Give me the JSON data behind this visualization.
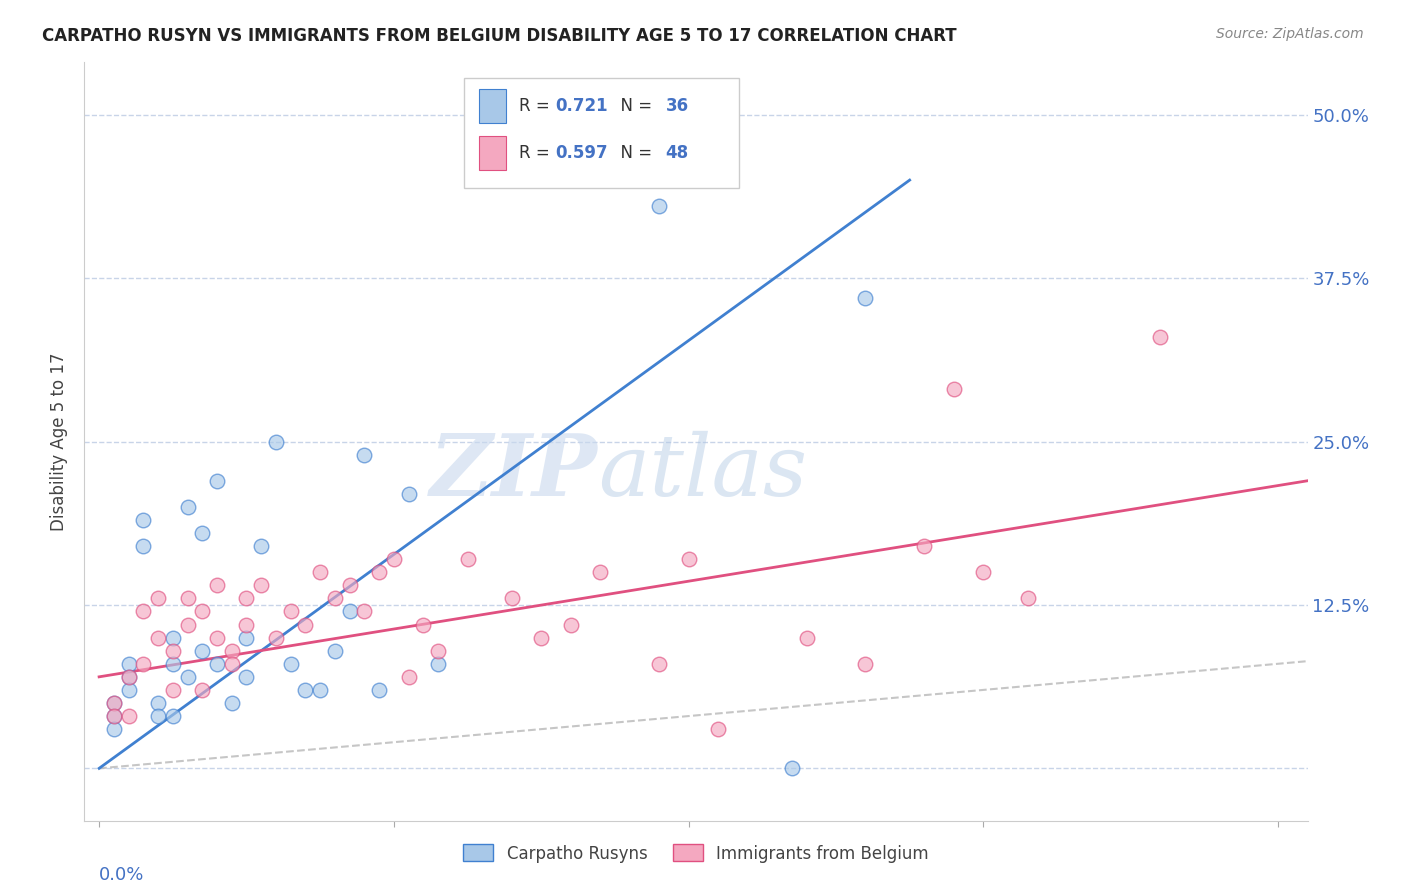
{
  "title": "CARPATHO RUSYN VS IMMIGRANTS FROM BELGIUM DISABILITY AGE 5 TO 17 CORRELATION CHART",
  "source": "Source: ZipAtlas.com",
  "ylabel": "Disability Age 5 to 17",
  "ytick_values": [
    0.0,
    0.125,
    0.25,
    0.375,
    0.5
  ],
  "ytick_labels": [
    "",
    "12.5%",
    "25.0%",
    "37.5%",
    "50.0%"
  ],
  "xlim": [
    -0.001,
    0.082
  ],
  "ylim": [
    -0.04,
    0.54
  ],
  "legend_label1": "Carpatho Rusyns",
  "legend_label2": "Immigrants from Belgium",
  "R1": "0.721",
  "N1": "36",
  "R2": "0.597",
  "N2": "48",
  "color1": "#a8c8e8",
  "color2": "#f4a8c0",
  "line_color1": "#4080d0",
  "line_color2": "#e05080",
  "diag_color": "#b8b8b8",
  "scatter1_x": [
    0.001,
    0.001,
    0.001,
    0.002,
    0.002,
    0.002,
    0.003,
    0.003,
    0.004,
    0.004,
    0.005,
    0.005,
    0.005,
    0.006,
    0.006,
    0.007,
    0.007,
    0.008,
    0.008,
    0.009,
    0.01,
    0.01,
    0.011,
    0.012,
    0.013,
    0.014,
    0.015,
    0.016,
    0.017,
    0.018,
    0.019,
    0.021,
    0.023,
    0.038,
    0.047,
    0.052
  ],
  "scatter1_y": [
    0.05,
    0.04,
    0.03,
    0.08,
    0.07,
    0.06,
    0.19,
    0.17,
    0.05,
    0.04,
    0.1,
    0.08,
    0.04,
    0.2,
    0.07,
    0.18,
    0.09,
    0.22,
    0.08,
    0.05,
    0.1,
    0.07,
    0.17,
    0.25,
    0.08,
    0.06,
    0.06,
    0.09,
    0.12,
    0.24,
    0.06,
    0.21,
    0.08,
    0.43,
    0.0,
    0.36
  ],
  "scatter2_x": [
    0.001,
    0.001,
    0.002,
    0.002,
    0.003,
    0.003,
    0.004,
    0.004,
    0.005,
    0.005,
    0.006,
    0.006,
    0.007,
    0.007,
    0.008,
    0.008,
    0.009,
    0.009,
    0.01,
    0.01,
    0.011,
    0.012,
    0.013,
    0.014,
    0.015,
    0.016,
    0.017,
    0.018,
    0.019,
    0.02,
    0.021,
    0.022,
    0.023,
    0.025,
    0.028,
    0.03,
    0.032,
    0.034,
    0.038,
    0.042,
    0.048,
    0.052,
    0.056,
    0.06,
    0.063,
    0.04,
    0.058,
    0.072
  ],
  "scatter2_y": [
    0.05,
    0.04,
    0.07,
    0.04,
    0.12,
    0.08,
    0.13,
    0.1,
    0.09,
    0.06,
    0.13,
    0.11,
    0.06,
    0.12,
    0.14,
    0.1,
    0.09,
    0.08,
    0.13,
    0.11,
    0.14,
    0.1,
    0.12,
    0.11,
    0.15,
    0.13,
    0.14,
    0.12,
    0.15,
    0.16,
    0.07,
    0.11,
    0.09,
    0.16,
    0.13,
    0.1,
    0.11,
    0.15,
    0.08,
    0.03,
    0.1,
    0.08,
    0.17,
    0.15,
    0.13,
    0.16,
    0.29,
    0.33
  ],
  "trendline1_x": [
    0.0,
    0.055
  ],
  "trendline1_y": [
    0.0,
    0.45
  ],
  "trendline2_x": [
    0.0,
    0.082
  ],
  "trendline2_y": [
    0.07,
    0.22
  ],
  "watermark_zip": "ZIP",
  "watermark_atlas": "atlas",
  "background_color": "#ffffff",
  "grid_color": "#c8d4e8"
}
